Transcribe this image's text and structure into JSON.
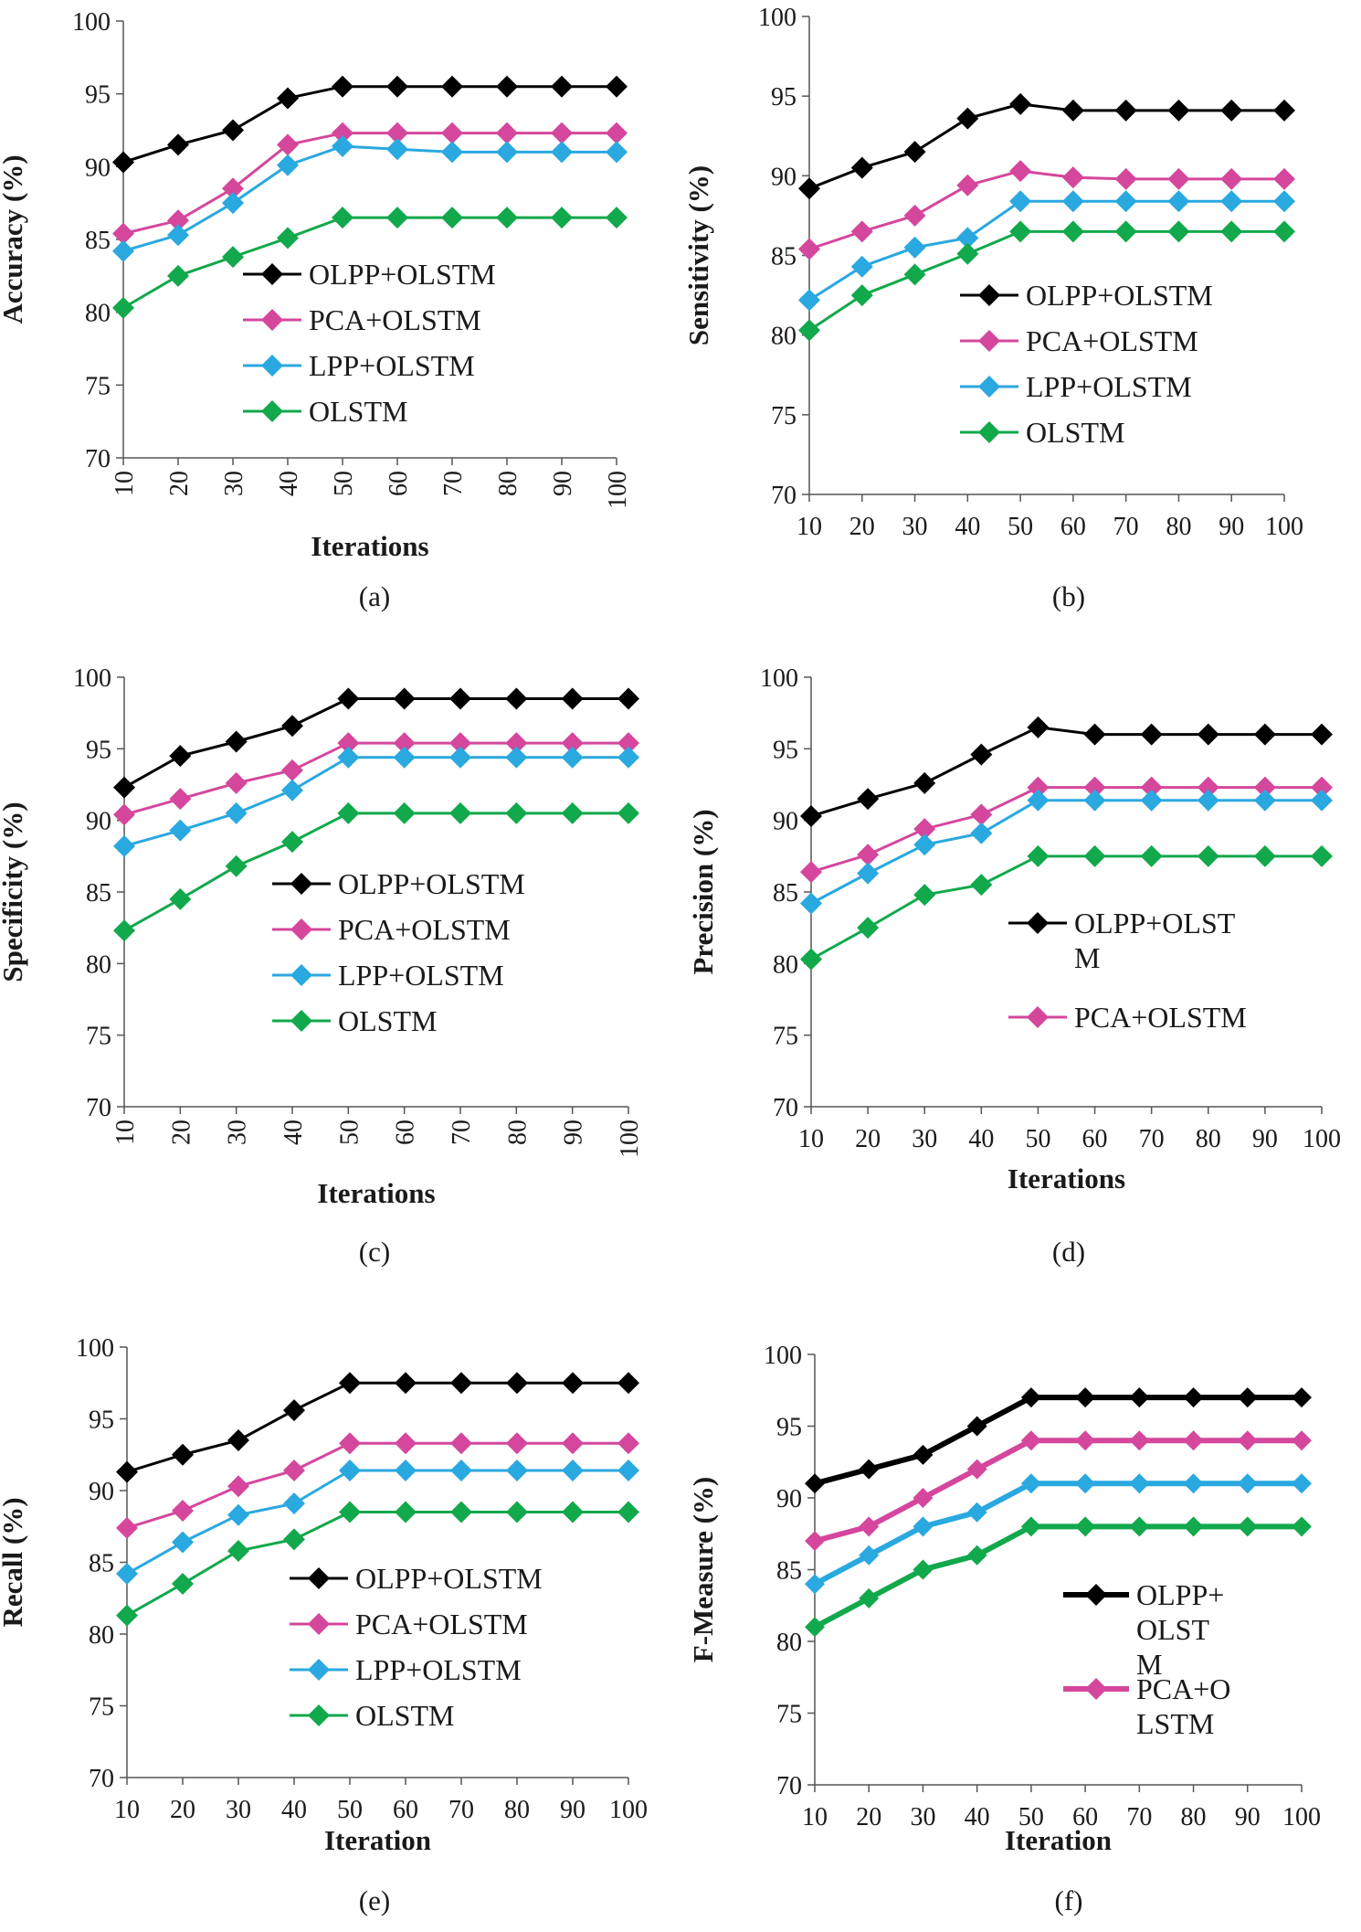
{
  "figure": {
    "colors": {
      "OLPP+OLSTM": "#000000",
      "PCA+OLSTM": "#d4479c",
      "LPP+OLSTM": "#2aa8e0",
      "OLSTM": "#12a84c"
    }
  },
  "chart_data": [
    {
      "type": "line",
      "panel": "(a)",
      "categories": [
        "10",
        "20",
        "30",
        "40",
        "50",
        "60",
        "70",
        "80",
        "90",
        "100"
      ],
      "xlabel": "Iterations",
      "ylabel": "Accuracy (%)",
      "ylim": [
        70,
        100
      ],
      "yticks": [
        "70",
        "75",
        "80",
        "85",
        "90",
        "95",
        "100"
      ],
      "rotated_x_ticks": true,
      "series": [
        {
          "name": "OLPP+OLSTM",
          "values": [
            90.3,
            91.5,
            92.5,
            94.7,
            95.5,
            95.5,
            95.5,
            95.5,
            95.5,
            95.5
          ]
        },
        {
          "name": "PCA+OLSTM",
          "values": [
            85.4,
            86.3,
            88.5,
            91.5,
            92.3,
            92.3,
            92.3,
            92.3,
            92.3,
            92.3
          ]
        },
        {
          "name": "LPP+OLSTM",
          "values": [
            84.2,
            85.3,
            87.5,
            90.1,
            91.4,
            91.2,
            91.0,
            91.0,
            91.0,
            91.0
          ]
        },
        {
          "name": "OLSTM",
          "values": [
            80.3,
            82.5,
            83.8,
            85.1,
            86.5,
            86.5,
            86.5,
            86.5,
            86.5,
            86.5
          ]
        }
      ],
      "legend": [
        {
          "label": "OLPP+OLSTM",
          "series": "OLPP+OLSTM"
        },
        {
          "label": "PCA+OLSTM",
          "series": "PCA+OLSTM"
        },
        {
          "label": "LPP+OLSTM",
          "series": "LPP+OLSTM"
        },
        {
          "label": "OLSTM",
          "series": "OLSTM"
        }
      ]
    },
    {
      "type": "line",
      "panel": "(b)",
      "categories": [
        "10",
        "20",
        "30",
        "40",
        "50",
        "60",
        "70",
        "80",
        "90",
        "100"
      ],
      "xlabel": "",
      "ylabel": "Sensitivity (%)",
      "ylim": [
        70,
        100
      ],
      "yticks": [
        "70",
        "75",
        "80",
        "85",
        "90",
        "95",
        "100"
      ],
      "rotated_x_ticks": false,
      "series": [
        {
          "name": "OLPP+OLSTM",
          "values": [
            89.2,
            90.5,
            91.5,
            93.6,
            94.5,
            94.1,
            94.1,
            94.1,
            94.1,
            94.1
          ]
        },
        {
          "name": "PCA+OLSTM",
          "values": [
            85.4,
            86.5,
            87.5,
            89.4,
            90.3,
            89.9,
            89.8,
            89.8,
            89.8,
            89.8
          ]
        },
        {
          "name": "LPP+OLSTM",
          "values": [
            82.2,
            84.3,
            85.5,
            86.1,
            88.4,
            88.4,
            88.4,
            88.4,
            88.4,
            88.4
          ]
        },
        {
          "name": "OLSTM",
          "values": [
            80.3,
            82.5,
            83.8,
            85.1,
            86.5,
            86.5,
            86.5,
            86.5,
            86.5,
            86.5
          ]
        }
      ],
      "legend": [
        {
          "label": "OLPP+OLSTM",
          "series": "OLPP+OLSTM"
        },
        {
          "label": "PCA+OLSTM",
          "series": "PCA+OLSTM"
        },
        {
          "label": "LPP+OLSTM",
          "series": "LPP+OLSTM"
        },
        {
          "label": "OLSTM",
          "series": "OLSTM"
        }
      ]
    },
    {
      "type": "line",
      "panel": "(c)",
      "categories": [
        "10",
        "20",
        "30",
        "40",
        "50",
        "60",
        "70",
        "80",
        "90",
        "100"
      ],
      "xlabel": "Iterations",
      "ylabel": "Specificity (%)",
      "ylim": [
        70,
        100
      ],
      "yticks": [
        "70",
        "75",
        "80",
        "85",
        "90",
        "95",
        "100"
      ],
      "rotated_x_ticks": true,
      "series": [
        {
          "name": "OLPP+OLSTM",
          "values": [
            92.3,
            94.5,
            95.5,
            96.6,
            98.5,
            98.5,
            98.5,
            98.5,
            98.5,
            98.5
          ]
        },
        {
          "name": "PCA+OLSTM",
          "values": [
            90.4,
            91.5,
            92.6,
            93.5,
            95.4,
            95.4,
            95.4,
            95.4,
            95.4,
            95.4
          ]
        },
        {
          "name": "LPP+OLSTM",
          "values": [
            88.2,
            89.3,
            90.5,
            92.1,
            94.4,
            94.4,
            94.4,
            94.4,
            94.4,
            94.4
          ]
        },
        {
          "name": "OLSTM",
          "values": [
            82.3,
            84.5,
            86.8,
            88.5,
            90.5,
            90.5,
            90.5,
            90.5,
            90.5,
            90.5
          ]
        }
      ],
      "legend": [
        {
          "label": "OLPP+OLSTM",
          "series": "OLPP+OLSTM"
        },
        {
          "label": "PCA+OLSTM",
          "series": "PCA+OLSTM"
        },
        {
          "label": "LPP+OLSTM",
          "series": "LPP+OLSTM"
        },
        {
          "label": "OLSTM",
          "series": "OLSTM"
        }
      ]
    },
    {
      "type": "line",
      "panel": "(d)",
      "categories": [
        "10",
        "20",
        "30",
        "40",
        "50",
        "60",
        "70",
        "80",
        "90",
        "100"
      ],
      "xlabel": "Iterations",
      "ylabel": "Precision (%)",
      "ylim": [
        70,
        100
      ],
      "yticks": [
        "70",
        "75",
        "80",
        "85",
        "90",
        "95",
        "100"
      ],
      "rotated_x_ticks": false,
      "series": [
        {
          "name": "OLPP+OLSTM",
          "values": [
            90.3,
            91.5,
            92.6,
            94.6,
            96.5,
            96.0,
            96.0,
            96.0,
            96.0,
            96.0
          ]
        },
        {
          "name": "PCA+OLSTM",
          "values": [
            86.4,
            87.6,
            89.4,
            90.4,
            92.3,
            92.3,
            92.3,
            92.3,
            92.3,
            92.3
          ]
        },
        {
          "name": "LPP+OLSTM",
          "values": [
            84.2,
            86.3,
            88.3,
            89.1,
            91.4,
            91.4,
            91.4,
            91.4,
            91.4,
            91.4
          ]
        },
        {
          "name": "OLSTM",
          "values": [
            80.3,
            82.5,
            84.8,
            85.5,
            87.5,
            87.5,
            87.5,
            87.5,
            87.5,
            87.5
          ]
        }
      ],
      "legend": [
        {
          "label": "OLPP+OLST",
          "label2": "M",
          "series": "OLPP+OLSTM"
        },
        {
          "label": "PCA+OLSTM",
          "series": "PCA+OLSTM"
        }
      ]
    },
    {
      "type": "line",
      "panel": "(e)",
      "categories": [
        "10",
        "20",
        "30",
        "40",
        "50",
        "60",
        "70",
        "80",
        "90",
        "100"
      ],
      "xlabel": "Iteration",
      "ylabel": "Recall (%)",
      "ylim": [
        70,
        100
      ],
      "yticks": [
        "70",
        "75",
        "80",
        "85",
        "90",
        "95",
        "100"
      ],
      "rotated_x_ticks": false,
      "series": [
        {
          "name": "OLPP+OLSTM",
          "values": [
            91.3,
            92.5,
            93.5,
            95.6,
            97.5,
            97.5,
            97.5,
            97.5,
            97.5,
            97.5
          ]
        },
        {
          "name": "PCA+OLSTM",
          "values": [
            87.4,
            88.6,
            90.3,
            91.4,
            93.3,
            93.3,
            93.3,
            93.3,
            93.3,
            93.3
          ]
        },
        {
          "name": "LPP+OLSTM",
          "values": [
            84.2,
            86.4,
            88.3,
            89.1,
            91.4,
            91.4,
            91.4,
            91.4,
            91.4,
            91.4
          ]
        },
        {
          "name": "OLSTM",
          "values": [
            81.3,
            83.5,
            85.8,
            86.6,
            88.5,
            88.5,
            88.5,
            88.5,
            88.5,
            88.5
          ]
        }
      ],
      "legend": [
        {
          "label": "OLPP+OLSTM",
          "series": "OLPP+OLSTM"
        },
        {
          "label": "PCA+OLSTM",
          "series": "PCA+OLSTM"
        },
        {
          "label": "LPP+OLSTM",
          "series": "LPP+OLSTM"
        },
        {
          "label": "OLSTM",
          "series": "OLSTM"
        }
      ]
    },
    {
      "type": "line",
      "panel": "(f)",
      "categories": [
        "10",
        "20",
        "30",
        "40",
        "50",
        "60",
        "70",
        "80",
        "90",
        "100"
      ],
      "xlabel": "Iteration",
      "ylabel": "F-Measure (%)",
      "ylim": [
        70,
        100
      ],
      "yticks": [
        "70",
        "75",
        "80",
        "85",
        "90",
        "95",
        "100"
      ],
      "rotated_x_ticks": false,
      "bold_lines": true,
      "series": [
        {
          "name": "OLPP+OLSTM",
          "values": [
            91,
            92,
            93,
            95,
            97,
            97,
            97,
            97,
            97,
            97
          ]
        },
        {
          "name": "PCA+OLSTM",
          "values": [
            87,
            88,
            90,
            92,
            94,
            94,
            94,
            94,
            94,
            94
          ]
        },
        {
          "name": "LPP+OLSTM",
          "values": [
            84,
            86,
            88,
            89,
            91,
            91,
            91,
            91,
            91,
            91
          ]
        },
        {
          "name": "OLSTM",
          "values": [
            81,
            83,
            85,
            86,
            88,
            88,
            88,
            88,
            88,
            88
          ]
        }
      ],
      "legend": [
        {
          "label": "OLPP+",
          "label2": "OLST",
          "label3": "M",
          "series": "OLPP+OLSTM"
        },
        {
          "label": "PCA+O",
          "label2": "LSTM",
          "series": "PCA+OLSTM"
        }
      ]
    }
  ]
}
